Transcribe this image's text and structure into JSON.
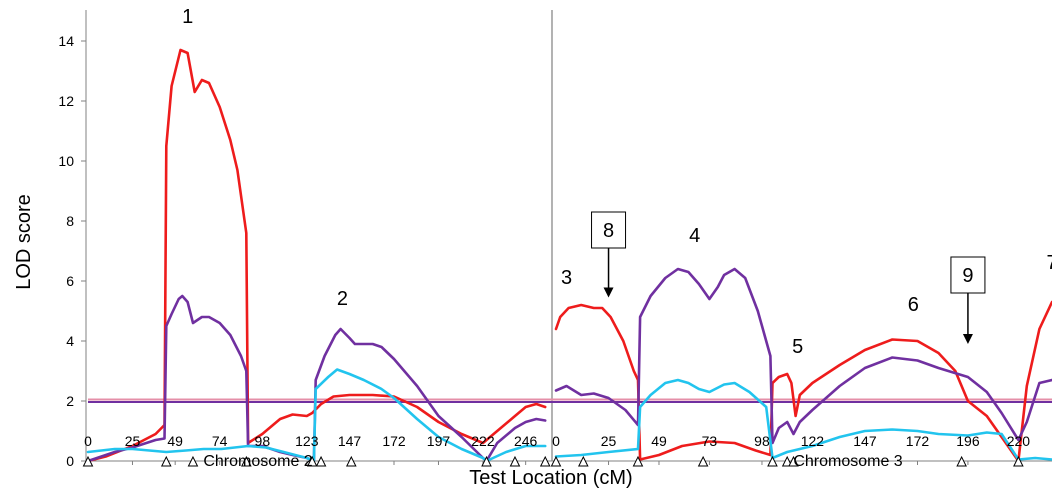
{
  "chart_data": {
    "type": "line",
    "ylabel": "LOD score",
    "xlabel": "Test Location (cM)",
    "ylim": [
      0,
      15
    ],
    "yticks": [
      0,
      2,
      4,
      6,
      8,
      10,
      12,
      14
    ],
    "threshold": 2,
    "colors": {
      "red": "#ee1c1c",
      "purple": "#7030a0",
      "cyan": "#22c4ee",
      "threshold_upper": "#e58fa8",
      "threshold_lower": "#7030a0",
      "divider": "#808080"
    },
    "panels": [
      {
        "chromosome_label": "Chromosome 2",
        "xlim": [
          0,
          258
        ],
        "xticks": [
          0,
          25,
          49,
          74,
          98,
          123,
          147,
          172,
          197,
          222,
          246
        ],
        "markers": [
          0,
          44,
          59,
          89,
          126,
          131,
          148,
          224,
          240,
          257
        ],
        "series": [
          {
            "color": "red",
            "points": [
              [
                0,
                0
              ],
              [
                10,
                0.15
              ],
              [
                25,
                0.5
              ],
              [
                38,
                0.9
              ],
              [
                43,
                1.2
              ],
              [
                44,
                10.5
              ],
              [
                47,
                12.5
              ],
              [
                52,
                13.7
              ],
              [
                56,
                13.6
              ],
              [
                60,
                12.3
              ],
              [
                64,
                12.7
              ],
              [
                68,
                12.6
              ],
              [
                74,
                11.8
              ],
              [
                80,
                10.7
              ],
              [
                84,
                9.7
              ],
              [
                89,
                7.6
              ],
              [
                90,
                0.6
              ],
              [
                98,
                0.9
              ],
              [
                108,
                1.4
              ],
              [
                115,
                1.55
              ],
              [
                123,
                1.5
              ],
              [
                126,
                1.6
              ],
              [
                131,
                1.9
              ],
              [
                138,
                2.15
              ],
              [
                147,
                2.2
              ],
              [
                160,
                2.2
              ],
              [
                172,
                2.15
              ],
              [
                185,
                1.8
              ],
              [
                197,
                1.3
              ],
              [
                210,
                0.9
              ],
              [
                222,
                0.6
              ],
              [
                230,
                1.0
              ],
              [
                240,
                1.5
              ],
              [
                246,
                1.8
              ],
              [
                252,
                1.9
              ],
              [
                257,
                1.8
              ]
            ]
          },
          {
            "color": "purple",
            "points": [
              [
                0,
                0
              ],
              [
                15,
                0.3
              ],
              [
                25,
                0.45
              ],
              [
                38,
                0.7
              ],
              [
                43,
                0.75
              ],
              [
                44,
                4.5
              ],
              [
                47,
                4.9
              ],
              [
                51,
                5.4
              ],
              [
                53,
                5.5
              ],
              [
                56,
                5.3
              ],
              [
                59,
                4.6
              ],
              [
                64,
                4.8
              ],
              [
                68,
                4.8
              ],
              [
                74,
                4.6
              ],
              [
                80,
                4.2
              ],
              [
                86,
                3.5
              ],
              [
                89,
                3.0
              ],
              [
                90,
                0.5
              ],
              [
                98,
                0.5
              ],
              [
                108,
                0.3
              ],
              [
                115,
                0.2
              ],
              [
                123,
                0.1
              ],
              [
                127,
                0
              ],
              [
                128,
                2.7
              ],
              [
                133,
                3.5
              ],
              [
                139,
                4.2
              ],
              [
                142,
                4.4
              ],
              [
                147,
                4.1
              ],
              [
                150,
                3.9
              ],
              [
                160,
                3.9
              ],
              [
                165,
                3.8
              ],
              [
                172,
                3.4
              ],
              [
                185,
                2.5
              ],
              [
                197,
                1.5
              ],
              [
                210,
                0.8
              ],
              [
                222,
                0.1
              ],
              [
                224,
                0
              ],
              [
                230,
                0.6
              ],
              [
                240,
                1.1
              ],
              [
                246,
                1.3
              ],
              [
                252,
                1.4
              ],
              [
                257,
                1.35
              ]
            ]
          },
          {
            "color": "cyan",
            "points": [
              [
                0,
                0.3
              ],
              [
                15,
                0.4
              ],
              [
                25,
                0.4
              ],
              [
                44,
                0.3
              ],
              [
                55,
                0.35
              ],
              [
                65,
                0.4
              ],
              [
                75,
                0.4
              ],
              [
                90,
                0.5
              ],
              [
                100,
                0.45
              ],
              [
                110,
                0.3
              ],
              [
                123,
                0.1
              ],
              [
                127,
                0
              ],
              [
                128,
                2.4
              ],
              [
                135,
                2.8
              ],
              [
                140,
                3.05
              ],
              [
                147,
                2.9
              ],
              [
                155,
                2.7
              ],
              [
                165,
                2.4
              ],
              [
                172,
                2.1
              ],
              [
                185,
                1.4
              ],
              [
                197,
                0.8
              ],
              [
                210,
                0.4
              ],
              [
                222,
                0.1
              ],
              [
                224,
                0
              ],
              [
                235,
                0.3
              ],
              [
                246,
                0.5
              ],
              [
                257,
                0.5
              ]
            ]
          }
        ]
      },
      {
        "chromosome_label": "Chromosome 3",
        "xlim": [
          0,
          236
        ],
        "xticks": [
          0,
          25,
          49,
          73,
          98,
          122,
          147,
          172,
          196,
          220
        ],
        "markers": [
          0,
          13,
          39,
          70,
          103,
          110,
          113,
          193,
          220
        ],
        "series": [
          {
            "color": "red",
            "points": [
              [
                0,
                4.4
              ],
              [
                2,
                4.8
              ],
              [
                6,
                5.1
              ],
              [
                12,
                5.2
              ],
              [
                18,
                5.1
              ],
              [
                22,
                5.1
              ],
              [
                26,
                4.8
              ],
              [
                32,
                4.0
              ],
              [
                37,
                3.0
              ],
              [
                39,
                2.7
              ],
              [
                40,
                0.05
              ],
              [
                49,
                0.2
              ],
              [
                60,
                0.5
              ],
              [
                73,
                0.65
              ],
              [
                85,
                0.6
              ],
              [
                95,
                0.35
              ],
              [
                102,
                0.2
              ],
              [
                103,
                2.6
              ],
              [
                106,
                2.8
              ],
              [
                110,
                2.9
              ],
              [
                112,
                2.6
              ],
              [
                114,
                1.5
              ],
              [
                116,
                2.2
              ],
              [
                122,
                2.6
              ],
              [
                135,
                3.2
              ],
              [
                147,
                3.7
              ],
              [
                160,
                4.05
              ],
              [
                172,
                4.0
              ],
              [
                182,
                3.6
              ],
              [
                190,
                3.0
              ],
              [
                196,
                2.0
              ],
              [
                205,
                1.5
              ],
              [
                212,
                0.8
              ],
              [
                220,
                0
              ],
              [
                224,
                2.5
              ],
              [
                230,
                4.4
              ],
              [
                236,
                5.3
              ]
            ]
          },
          {
            "color": "purple",
            "points": [
              [
                0,
                2.35
              ],
              [
                5,
                2.5
              ],
              [
                12,
                2.2
              ],
              [
                18,
                2.25
              ],
              [
                25,
                2.1
              ],
              [
                33,
                1.7
              ],
              [
                39,
                1.2
              ],
              [
                40,
                4.8
              ],
              [
                45,
                5.5
              ],
              [
                52,
                6.1
              ],
              [
                58,
                6.4
              ],
              [
                63,
                6.3
              ],
              [
                68,
                5.9
              ],
              [
                73,
                5.4
              ],
              [
                77,
                5.8
              ],
              [
                80,
                6.2
              ],
              [
                85,
                6.4
              ],
              [
                90,
                6.1
              ],
              [
                96,
                5.0
              ],
              [
                102,
                3.5
              ],
              [
                103,
                0.6
              ],
              [
                106,
                1.1
              ],
              [
                110,
                1.3
              ],
              [
                113,
                0.9
              ],
              [
                116,
                1.3
              ],
              [
                122,
                1.7
              ],
              [
                135,
                2.5
              ],
              [
                147,
                3.1
              ],
              [
                160,
                3.45
              ],
              [
                172,
                3.35
              ],
              [
                182,
                3.1
              ],
              [
                196,
                2.8
              ],
              [
                205,
                2.3
              ],
              [
                212,
                1.6
              ],
              [
                220,
                0.7
              ],
              [
                224,
                1.3
              ],
              [
                230,
                2.6
              ],
              [
                236,
                2.7
              ]
            ]
          },
          {
            "color": "cyan",
            "points": [
              [
                0,
                0.15
              ],
              [
                12,
                0.2
              ],
              [
                25,
                0.3
              ],
              [
                39,
                0.4
              ],
              [
                40,
                1.8
              ],
              [
                45,
                2.2
              ],
              [
                52,
                2.6
              ],
              [
                58,
                2.7
              ],
              [
                63,
                2.6
              ],
              [
                68,
                2.4
              ],
              [
                73,
                2.3
              ],
              [
                80,
                2.55
              ],
              [
                85,
                2.6
              ],
              [
                92,
                2.3
              ],
              [
                100,
                1.8
              ],
              [
                103,
                0.1
              ],
              [
                110,
                0.3
              ],
              [
                122,
                0.5
              ],
              [
                135,
                0.8
              ],
              [
                147,
                1.0
              ],
              [
                160,
                1.05
              ],
              [
                172,
                1.0
              ],
              [
                182,
                0.9
              ],
              [
                196,
                0.85
              ],
              [
                205,
                0.95
              ],
              [
                212,
                0.9
              ],
              [
                220,
                0.05
              ],
              [
                228,
                0.1
              ],
              [
                236,
                0.05
              ]
            ]
          }
        ]
      }
    ],
    "peak_labels": [
      {
        "text": "1",
        "panel": 0,
        "x": 56,
        "y": 14.6
      },
      {
        "text": "2",
        "panel": 0,
        "x": 143,
        "y": 5.2
      },
      {
        "text": "3",
        "panel": 1,
        "x": 5,
        "y": 5.9
      },
      {
        "text": "4",
        "panel": 1,
        "x": 66,
        "y": 7.3
      },
      {
        "text": "5",
        "panel": 1,
        "x": 115,
        "y": 3.6
      },
      {
        "text": "6",
        "panel": 1,
        "x": 170,
        "y": 5.0
      },
      {
        "text": "7",
        "panel": 1,
        "x": 236,
        "y": 6.4
      }
    ],
    "boxed_labels": [
      {
        "text": "8",
        "panel": 1,
        "x": 25,
        "box_y": 7.7,
        "arrow_to": 5.45
      },
      {
        "text": "9",
        "panel": 1,
        "x": 196,
        "box_y": 6.2,
        "arrow_to": 3.9
      }
    ]
  }
}
